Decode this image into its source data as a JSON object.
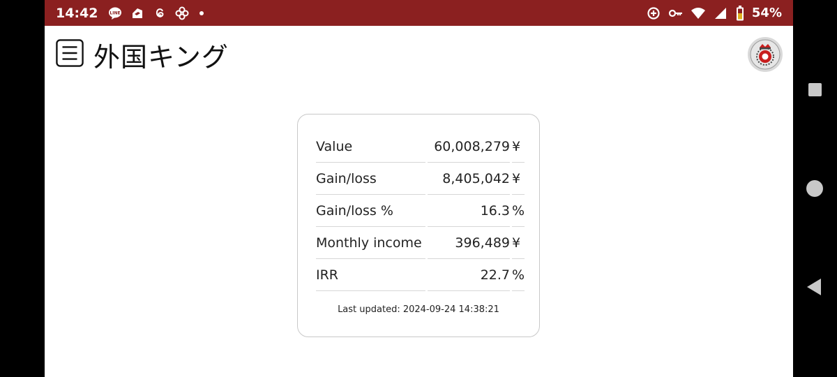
{
  "status_bar": {
    "time": "14:42",
    "left_icons": [
      "line-icon",
      "delivery-icon",
      "threads-icon",
      "pinwheel-icon",
      "notification-dot-icon"
    ],
    "right_icons": [
      "data-saver-icon",
      "vpn-key-icon",
      "wifi-icon",
      "signal-icon",
      "battery-icon"
    ],
    "battery": "54%",
    "color": "#8b2020"
  },
  "app_bar": {
    "title": "外国キング"
  },
  "summary": {
    "rows": [
      {
        "label": "Value",
        "value": "60,008,279",
        "unit": "¥"
      },
      {
        "label": "Gain/loss",
        "value": "8,405,042",
        "unit": "¥"
      },
      {
        "label": "Gain/loss %",
        "value": "16.3",
        "unit": "%"
      },
      {
        "label": "Monthly income",
        "value": "396,489",
        "unit": "¥"
      },
      {
        "label": "IRR",
        "value": "22.7",
        "unit": "%"
      }
    ],
    "last_updated": "Last updated: 2024-09-24 14:38:21"
  }
}
